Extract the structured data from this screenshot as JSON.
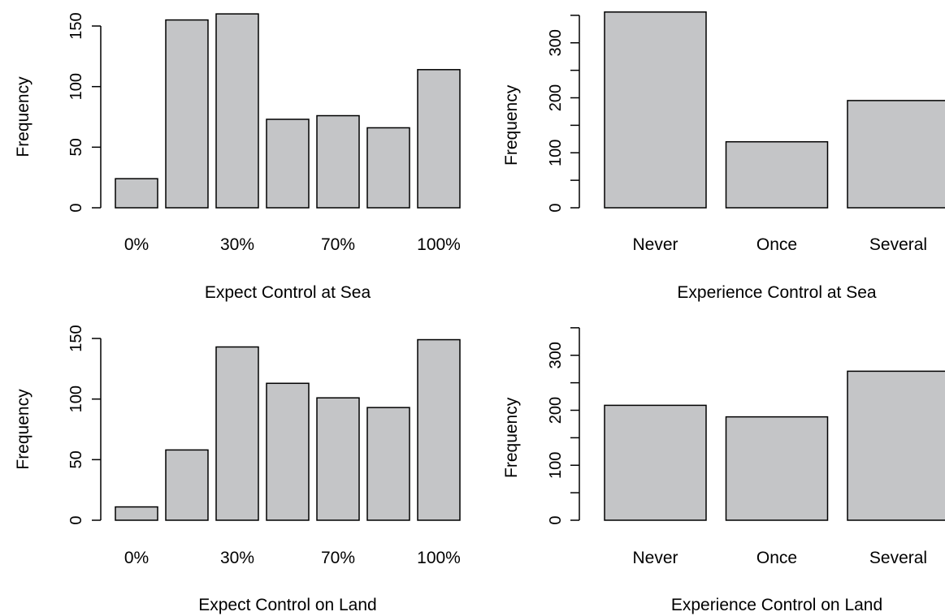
{
  "chart_data": [
    {
      "type": "bar",
      "xlabel": "Expect Control at Sea",
      "ylabel": "Frequency",
      "categories": [
        "0%",
        "",
        "30%",
        "",
        "70%",
        "",
        "100%"
      ],
      "tick_labels": [
        "0%",
        "30%",
        "70%",
        "100%"
      ],
      "values": [
        24,
        155,
        160,
        73,
        76,
        66,
        114
      ],
      "yticks": [
        0,
        50,
        100,
        150
      ],
      "ylim": [
        0,
        160
      ],
      "grid": false,
      "colors": {
        "bar": "#c4c5c7"
      }
    },
    {
      "type": "bar",
      "xlabel": "Experience Control at Sea",
      "ylabel": "Frequency",
      "categories": [
        "Never",
        "Once",
        "Several"
      ],
      "values": [
        356,
        120,
        195
      ],
      "yticks": [
        0,
        100,
        200,
        300
      ],
      "ylim": [
        0,
        350
      ],
      "grid": false,
      "colors": {
        "bar": "#c4c5c7"
      }
    },
    {
      "type": "bar",
      "xlabel": "Expect Control on Land",
      "ylabel": "Frequency",
      "categories": [
        "0%",
        "",
        "30%",
        "",
        "70%",
        "",
        "100%"
      ],
      "tick_labels": [
        "0%",
        "30%",
        "70%",
        "100%"
      ],
      "values": [
        11,
        58,
        143,
        113,
        101,
        93,
        149
      ],
      "yticks": [
        0,
        50,
        100,
        150
      ],
      "ylim": [
        0,
        160
      ],
      "grid": false,
      "colors": {
        "bar": "#c4c5c7"
      }
    },
    {
      "type": "bar",
      "xlabel": "Experience Control on Land",
      "ylabel": "Frequency",
      "categories": [
        "Never",
        "Once",
        "Several"
      ],
      "values": [
        209,
        188,
        271
      ],
      "yticks": [
        0,
        100,
        200,
        300
      ],
      "ylim": [
        0,
        350
      ],
      "grid": false,
      "colors": {
        "bar": "#c4c5c7"
      }
    }
  ]
}
